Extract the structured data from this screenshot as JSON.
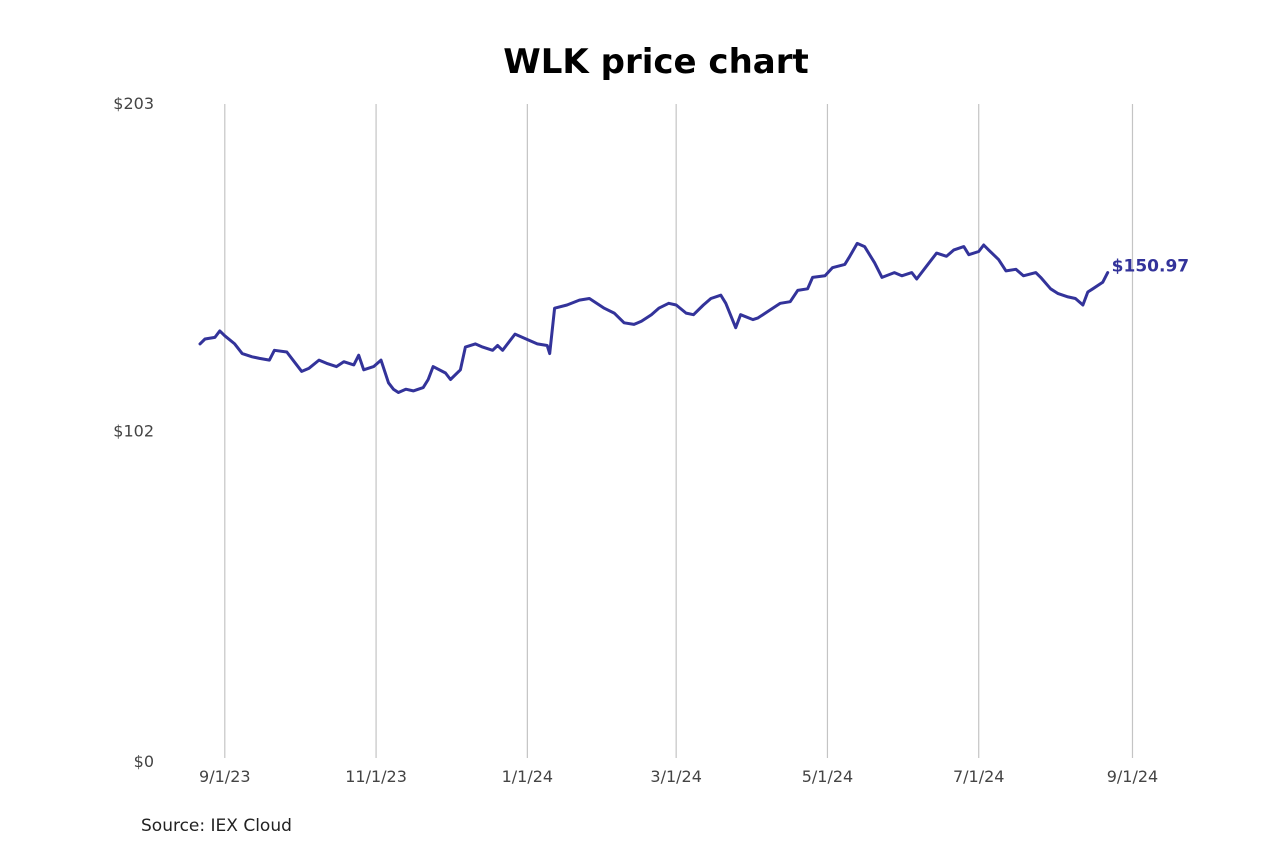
{
  "chart_data": {
    "type": "line",
    "title": "WLK price chart",
    "xlabel": "",
    "ylabel": "",
    "y_ticks": [
      {
        "value": 0,
        "label": "$0"
      },
      {
        "value": 102,
        "label": "$102"
      },
      {
        "value": 203,
        "label": "$203"
      }
    ],
    "ylim": [
      0,
      203
    ],
    "xlim": [
      "2023-08-22",
      "2024-08-31"
    ],
    "x_ticks": [
      {
        "date": "2023-09-01",
        "label": "9/1/23"
      },
      {
        "date": "2023-11-01",
        "label": "11/1/23"
      },
      {
        "date": "2024-01-01",
        "label": "1/1/24"
      },
      {
        "date": "2024-03-01",
        "label": "3/1/24"
      },
      {
        "date": "2024-05-01",
        "label": "5/1/24"
      },
      {
        "date": "2024-07-01",
        "label": "7/1/24"
      },
      {
        "date": "2024-09-01",
        "label": "9/1/24"
      }
    ],
    "grid": {
      "vertical": true,
      "horizontal": false
    },
    "series": [
      {
        "color": "#33339a",
        "end_label": "$150.97",
        "points": [
          [
            "2023-08-22",
            129.0
          ],
          [
            "2023-08-24",
            130.5
          ],
          [
            "2023-08-28",
            131.0
          ],
          [
            "2023-08-30",
            133.0
          ],
          [
            "2023-09-01",
            131.5
          ],
          [
            "2023-09-05",
            129.0
          ],
          [
            "2023-09-08",
            126.0
          ],
          [
            "2023-09-12",
            125.0
          ],
          [
            "2023-09-15",
            124.5
          ],
          [
            "2023-09-19",
            124.0
          ],
          [
            "2023-09-21",
            127.0
          ],
          [
            "2023-09-26",
            126.5
          ],
          [
            "2023-09-29",
            123.5
          ],
          [
            "2023-10-02",
            120.5
          ],
          [
            "2023-10-05",
            121.5
          ],
          [
            "2023-10-09",
            124.0
          ],
          [
            "2023-10-12",
            123.0
          ],
          [
            "2023-10-16",
            122.0
          ],
          [
            "2023-10-19",
            123.5
          ],
          [
            "2023-10-23",
            122.5
          ],
          [
            "2023-10-25",
            125.5
          ],
          [
            "2023-10-27",
            121.0
          ],
          [
            "2023-10-31",
            122.0
          ],
          [
            "2023-11-03",
            124.0
          ],
          [
            "2023-11-06",
            117.0
          ],
          [
            "2023-11-08",
            115.0
          ],
          [
            "2023-11-10",
            114.0
          ],
          [
            "2023-11-13",
            115.0
          ],
          [
            "2023-11-16",
            114.5
          ],
          [
            "2023-11-20",
            115.5
          ],
          [
            "2023-11-22",
            118.0
          ],
          [
            "2023-11-24",
            122.0
          ],
          [
            "2023-11-29",
            120.0
          ],
          [
            "2023-12-01",
            118.0
          ],
          [
            "2023-12-05",
            121.0
          ],
          [
            "2023-12-07",
            128.0
          ],
          [
            "2023-12-11",
            129.0
          ],
          [
            "2023-12-14",
            128.0
          ],
          [
            "2023-12-18",
            127.0
          ],
          [
            "2023-12-20",
            128.5
          ],
          [
            "2023-12-22",
            127.0
          ],
          [
            "2023-12-27",
            132.0
          ],
          [
            "2024-01-02",
            130.0
          ],
          [
            "2024-01-05",
            129.0
          ],
          [
            "2024-01-09",
            128.5
          ],
          [
            "2024-01-10",
            126.0
          ],
          [
            "2024-01-12",
            140.0
          ],
          [
            "2024-01-17",
            141.0
          ],
          [
            "2024-01-22",
            142.5
          ],
          [
            "2024-01-26",
            143.0
          ],
          [
            "2024-01-30",
            141.0
          ],
          [
            "2024-02-01",
            140.0
          ],
          [
            "2024-02-05",
            138.5
          ],
          [
            "2024-02-09",
            135.5
          ],
          [
            "2024-02-13",
            135.0
          ],
          [
            "2024-02-16",
            136.0
          ],
          [
            "2024-02-20",
            138.0
          ],
          [
            "2024-02-23",
            140.0
          ],
          [
            "2024-02-27",
            141.5
          ],
          [
            "2024-03-01",
            141.0
          ],
          [
            "2024-03-05",
            138.5
          ],
          [
            "2024-03-08",
            138.0
          ],
          [
            "2024-03-12",
            141.0
          ],
          [
            "2024-03-15",
            143.0
          ],
          [
            "2024-03-19",
            144.0
          ],
          [
            "2024-03-21",
            141.5
          ],
          [
            "2024-03-25",
            134.0
          ],
          [
            "2024-03-27",
            138.0
          ],
          [
            "2024-04-01",
            136.5
          ],
          [
            "2024-04-03",
            137.0
          ],
          [
            "2024-04-08",
            139.5
          ],
          [
            "2024-04-12",
            141.5
          ],
          [
            "2024-04-16",
            142.0
          ],
          [
            "2024-04-19",
            145.5
          ],
          [
            "2024-04-23",
            146.0
          ],
          [
            "2024-04-25",
            149.5
          ],
          [
            "2024-04-30",
            150.0
          ],
          [
            "2024-05-03",
            152.5
          ],
          [
            "2024-05-08",
            153.5
          ],
          [
            "2024-05-10",
            156.0
          ],
          [
            "2024-05-13",
            160.0
          ],
          [
            "2024-05-16",
            159.0
          ],
          [
            "2024-05-20",
            154.0
          ],
          [
            "2024-05-23",
            149.5
          ],
          [
            "2024-05-28",
            151.0
          ],
          [
            "2024-05-31",
            150.0
          ],
          [
            "2024-06-04",
            151.0
          ],
          [
            "2024-06-06",
            149.0
          ],
          [
            "2024-06-10",
            153.0
          ],
          [
            "2024-06-12",
            155.0
          ],
          [
            "2024-06-14",
            157.0
          ],
          [
            "2024-06-18",
            156.0
          ],
          [
            "2024-06-21",
            158.0
          ],
          [
            "2024-06-25",
            159.0
          ],
          [
            "2024-06-27",
            156.5
          ],
          [
            "2024-07-01",
            157.5
          ],
          [
            "2024-07-03",
            159.5
          ],
          [
            "2024-07-05",
            158.0
          ],
          [
            "2024-07-09",
            155.0
          ],
          [
            "2024-07-12",
            151.5
          ],
          [
            "2024-07-16",
            152.0
          ],
          [
            "2024-07-19",
            150.0
          ],
          [
            "2024-07-24",
            151.0
          ],
          [
            "2024-07-26",
            149.5
          ],
          [
            "2024-07-30",
            146.0
          ],
          [
            "2024-08-02",
            144.5
          ],
          [
            "2024-08-06",
            143.5
          ],
          [
            "2024-08-09",
            143.0
          ],
          [
            "2024-08-12",
            141.0
          ],
          [
            "2024-08-14",
            145.0
          ],
          [
            "2024-08-16",
            146.0
          ],
          [
            "2024-08-20",
            148.0
          ],
          [
            "2024-08-22",
            150.97
          ]
        ]
      }
    ]
  },
  "source": "Source: IEX Cloud"
}
